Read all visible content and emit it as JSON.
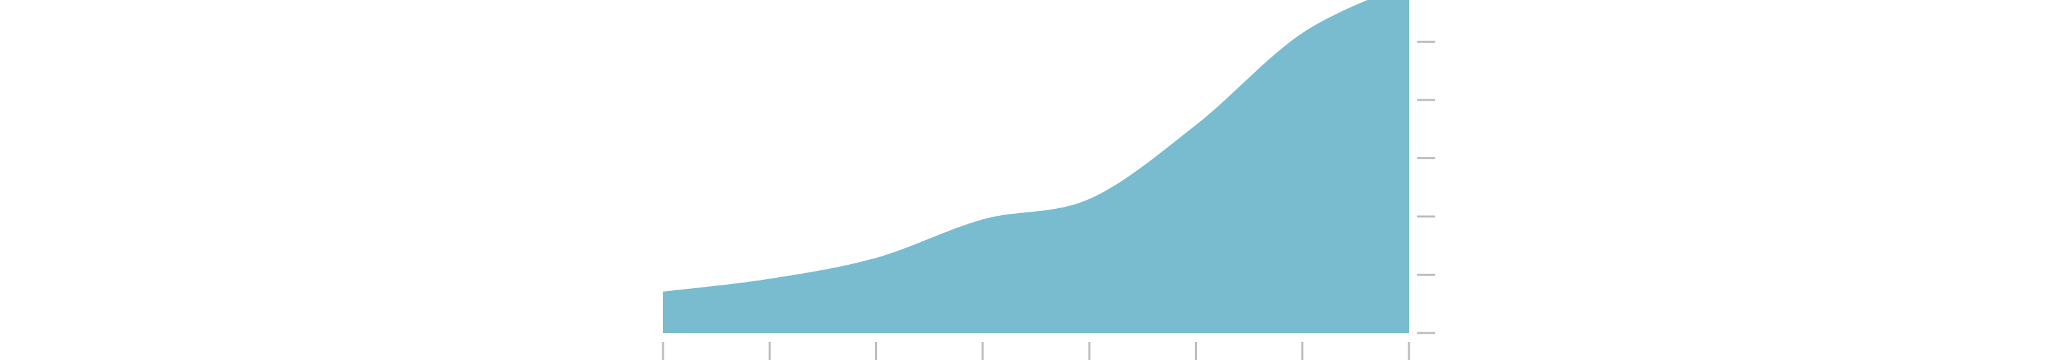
{
  "chart_data": {
    "type": "area",
    "title": "",
    "xlabel": "",
    "ylabel": "",
    "x": [
      0,
      1,
      2,
      3,
      4,
      5,
      6,
      7
    ],
    "series": [
      {
        "values": [
          0.71,
          0.93,
          1.29,
          1.95,
          2.3,
          3.57,
          5.15,
          6.01
        ]
      }
    ],
    "xlim": [
      0,
      7
    ],
    "ylim": [
      0,
      6
    ],
    "x_ticks": [
      0,
      1,
      2,
      3,
      4,
      5,
      6,
      7
    ],
    "y_ticks": [
      0,
      1,
      2,
      3,
      4,
      5
    ],
    "grid": false,
    "legend": "none",
    "y_axis_position": "right",
    "fill_color": "#79bcd0",
    "tick_color": "#bdbdbd"
  }
}
